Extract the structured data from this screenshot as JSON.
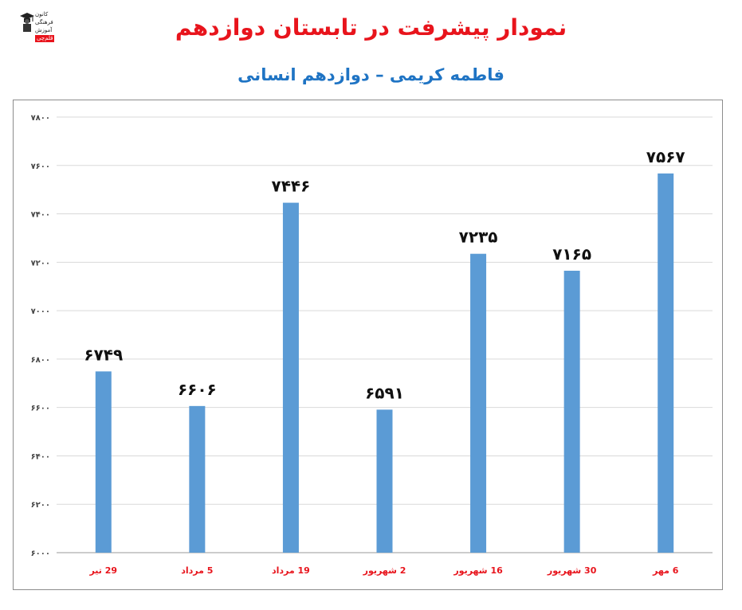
{
  "header": {
    "title": "نمودار پیشرفت در تابستان دوازدهم",
    "subtitle": "فاطمه کریمی – دوازدهم انسانی"
  },
  "logo": {
    "icon": "graduate-icon",
    "lines": [
      "کانون",
      "فرهنگی",
      "آموزش",
      "قلم‌چی"
    ]
  },
  "colors": {
    "title": "#e8141c",
    "subtitle": "#1f74c4",
    "bar": "#5b9bd5",
    "category": "#e8141c"
  },
  "chart_data": {
    "type": "bar",
    "title": "",
    "xlabel": "",
    "ylabel": "",
    "categories": [
      "29 تیر",
      "5 مرداد",
      "19 مرداد",
      "2 شهریور",
      "16 شهریور",
      "30 شهریور",
      "6 مهر"
    ],
    "values": [
      6749,
      6606,
      7446,
      6591,
      7235,
      7165,
      7567
    ],
    "data_labels": [
      "۶۷۴۹",
      "۶۶۰۶",
      "۷۴۴۶",
      "۶۵۹۱",
      "۷۲۳۵",
      "۷۱۶۵",
      "۷۵۶۷"
    ],
    "ylim": [
      6000,
      7800
    ],
    "yticks": [
      6000,
      6200,
      6400,
      6600,
      6800,
      7000,
      7200,
      7400,
      7600,
      7800
    ],
    "ytick_labels": [
      "۶۰۰۰",
      "۶۲۰۰",
      "۶۴۰۰",
      "۶۶۰۰",
      "۶۸۰۰",
      "۷۰۰۰",
      "۷۲۰۰",
      "۷۴۰۰",
      "۷۶۰۰",
      "۷۸۰۰"
    ],
    "grid": true,
    "legend": "none"
  }
}
